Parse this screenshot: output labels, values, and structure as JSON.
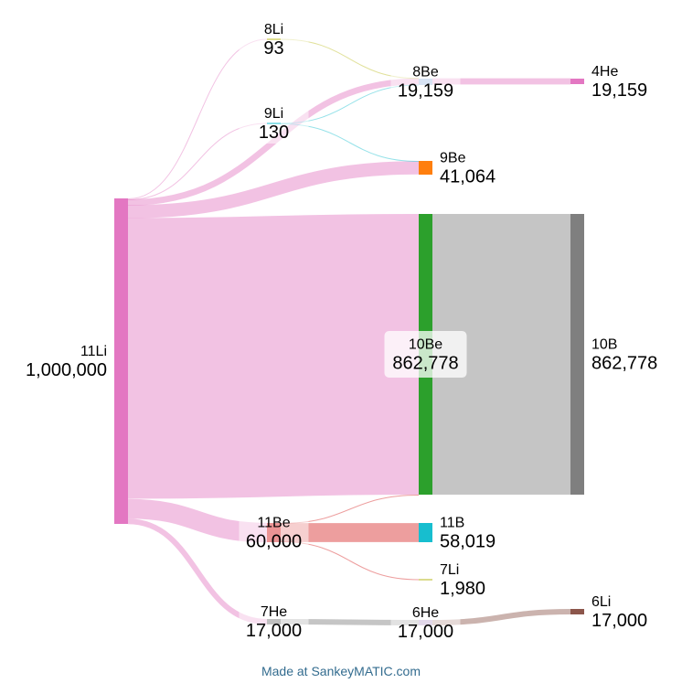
{
  "nodes": [
    {
      "id": "11Li",
      "value": "1,000,000",
      "color": "#e377c2"
    },
    {
      "id": "8Li",
      "value": "93",
      "color": "#bcbd22"
    },
    {
      "id": "9Li",
      "value": "130",
      "color": "#17becf"
    },
    {
      "id": "11Be",
      "value": "60,000",
      "color": "#d62728"
    },
    {
      "id": "7He",
      "value": "17,000",
      "color": "#7f7f7f"
    },
    {
      "id": "8Be",
      "value": "19,159",
      "color": "#aec7e8"
    },
    {
      "id": "9Be",
      "value": "41,064",
      "color": "#ff7f0e"
    },
    {
      "id": "10Be",
      "value": "862,778",
      "color": "#2ca02c"
    },
    {
      "id": "11B",
      "value": "58,019",
      "color": "#17becf"
    },
    {
      "id": "7Li",
      "value": "1,980",
      "color": "#dbdb8d"
    },
    {
      "id": "6He",
      "value": "17,000",
      "color": "#c5b0d5"
    },
    {
      "id": "4He",
      "value": "19,159",
      "color": "#e377c2"
    },
    {
      "id": "10B",
      "value": "862,778",
      "color": "#7f7f7f"
    },
    {
      "id": "6Li",
      "value": "17,000",
      "color": "#8c564b"
    }
  ],
  "links": [
    {
      "source": "11Li",
      "target": "8Li",
      "value": 93,
      "color": "#e377c2"
    },
    {
      "source": "11Li",
      "target": "9Li",
      "value": 130,
      "color": "#e377c2"
    },
    {
      "source": "11Li",
      "target": "8Be",
      "value": 19159,
      "color": "#e377c2"
    },
    {
      "source": "11Li",
      "target": "9Be",
      "value": 41064,
      "color": "#e377c2"
    },
    {
      "source": "11Li",
      "target": "10Be",
      "value": 862777,
      "color": "#e377c2"
    },
    {
      "source": "11Li",
      "target": "11Be",
      "value": 60000,
      "color": "#e377c2"
    },
    {
      "source": "11Li",
      "target": "7He",
      "value": 17000,
      "color": "#e377c2"
    },
    {
      "source": "8Li",
      "target": "8Be",
      "value": 93,
      "color": "#bcbd22"
    },
    {
      "source": "9Li",
      "target": "8Be",
      "value": 65,
      "color": "#17becf"
    },
    {
      "source": "9Li",
      "target": "9Be",
      "value": 65,
      "color": "#17becf"
    },
    {
      "source": "8Be",
      "target": "4He",
      "value": 19159,
      "color": "#e377c2"
    },
    {
      "source": "10Be",
      "target": "10B",
      "value": 862778,
      "color": "#7f7f7f"
    },
    {
      "source": "11Be",
      "target": "10Be",
      "value": 1,
      "color": "#d62728"
    },
    {
      "source": "11Be",
      "target": "11B",
      "value": 58019,
      "color": "#d62728"
    },
    {
      "source": "11Be",
      "target": "7Li",
      "value": 1980,
      "color": "#d62728"
    },
    {
      "source": "7He",
      "target": "6He",
      "value": 17000,
      "color": "#7f7f7f"
    },
    {
      "source": "6He",
      "target": "6Li",
      "value": 17000,
      "color": "#8c564b"
    }
  ],
  "footer": "Made at SankeyMATIC.com"
}
